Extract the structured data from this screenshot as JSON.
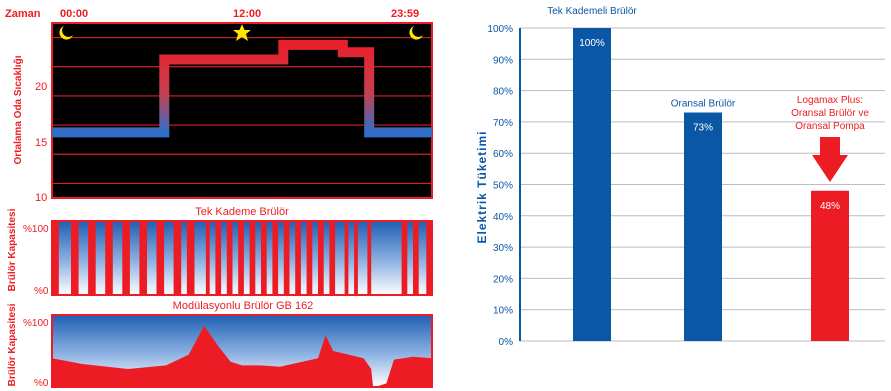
{
  "left": {
    "time_axis": {
      "label": "Zaman",
      "ticks": [
        "00:00",
        "12:00",
        "23:59"
      ]
    },
    "temperature_chart": {
      "ylabel": "Ortalama Oda Sıcaklığı",
      "yticks": [
        "20",
        "15",
        "10"
      ],
      "ylim": [
        10,
        22
      ],
      "grid": true,
      "icons": [
        "moon-icon",
        "sun-icon",
        "moon-icon"
      ]
    },
    "stage_chart": {
      "title": "Tek Kademe Brülör",
      "ylabel": "Brülör Kapasitesi",
      "yticks": [
        "%100",
        "%0"
      ]
    },
    "modulating_chart": {
      "title": "Modülasyonlu Brülör GB 162",
      "ylabel": "Brülör Kapasitesi",
      "yticks": [
        "%100",
        "%0"
      ]
    }
  },
  "chart_data": [
    {
      "type": "line",
      "x": [
        0,
        3.4,
        3.4,
        7.0,
        7.0,
        8.8,
        8.8,
        9.6,
        9.6,
        10.5,
        10.5,
        11.5
      ],
      "y": [
        14.5,
        14.5,
        19.5,
        19.5,
        20.5,
        20.5,
        20.0,
        20.0,
        14.5,
        14.5,
        14.5,
        14.5
      ],
      "ylim": [
        10,
        22
      ],
      "ylabel": "Ortalama Oda Sıcaklığı",
      "xlabel": "Zaman",
      "xticks": [
        "00:00",
        "12:00",
        "23:59"
      ]
    },
    {
      "type": "bar",
      "title": "Tek Kademe Brülör",
      "ylabel": "Brülör Kapasitesi",
      "on_fraction_intervals": [
        [
          0.0,
          0.018
        ],
        [
          0.05,
          0.07
        ],
        [
          0.095,
          0.115
        ],
        [
          0.14,
          0.16
        ],
        [
          0.185,
          0.205
        ],
        [
          0.23,
          0.25
        ],
        [
          0.275,
          0.295
        ],
        [
          0.32,
          0.34
        ],
        [
          0.355,
          0.375
        ],
        [
          0.405,
          0.415
        ],
        [
          0.43,
          0.445
        ],
        [
          0.46,
          0.475
        ],
        [
          0.49,
          0.505
        ],
        [
          0.52,
          0.535
        ],
        [
          0.55,
          0.565
        ],
        [
          0.58,
          0.595
        ],
        [
          0.61,
          0.625
        ],
        [
          0.64,
          0.655
        ],
        [
          0.67,
          0.685
        ],
        [
          0.7,
          0.715
        ],
        [
          0.73,
          0.745
        ],
        [
          0.77,
          0.78
        ],
        [
          0.795,
          0.805
        ],
        [
          0.83,
          0.84
        ],
        [
          0.92,
          0.935
        ],
        [
          0.95,
          0.965
        ],
        [
          0.985,
          1.0
        ]
      ]
    },
    {
      "type": "area",
      "title": "Modülasyonlu Brülör GB 162",
      "ylabel": "Brülör Kapasitesi",
      "x": [
        0.0,
        0.08,
        0.2,
        0.3,
        0.36,
        0.4,
        0.44,
        0.47,
        0.5,
        0.55,
        0.6,
        0.7,
        0.72,
        0.74,
        0.78,
        0.82,
        0.84,
        0.845,
        0.85,
        0.88,
        0.9,
        0.95,
        1.0
      ],
      "y": [
        40,
        32,
        25,
        30,
        45,
        85,
        55,
        35,
        30,
        30,
        28,
        40,
        72,
        50,
        45,
        40,
        25,
        0,
        0,
        5,
        38,
        42,
        40
      ],
      "ylim": [
        0,
        100
      ]
    },
    {
      "type": "bar",
      "ylabel": "Elektrik Tüketimi",
      "ylim": [
        0,
        100
      ],
      "yticks": [
        "0%",
        "10%",
        "20%",
        "30%",
        "40%",
        "50%",
        "60%",
        "70%",
        "80%",
        "90%",
        "100%"
      ],
      "grid": true,
      "categories": [
        "Tek Kademeli Brülör",
        "Oransal Brülör",
        "Logamax Plus:\nOransal Brülör ve\nOransal Pompa"
      ],
      "values": [
        100,
        73,
        48
      ],
      "value_labels": [
        "100%",
        "73%",
        "48%"
      ],
      "colors": [
        "#0a57a6",
        "#0a57a6",
        "#ed1c24"
      ]
    }
  ]
}
